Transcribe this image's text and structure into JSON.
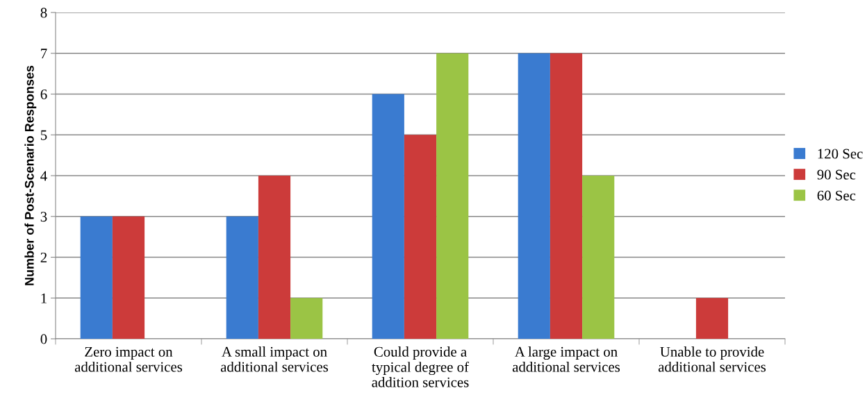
{
  "chart_data": {
    "type": "bar",
    "ylabel": "Number of Post-Scenario Responses",
    "categories": [
      "Zero impact on\nadditional services",
      "A small impact on\nadditional services",
      "Could provide a\ntypical degree of\naddition services",
      "A large impact on\nadditional services",
      "Unable to provide\nadditional services"
    ],
    "series": [
      {
        "name": "120 Sec",
        "color": "#3a7bd0",
        "values": [
          3,
          3,
          6,
          7,
          0
        ]
      },
      {
        "name": "90 Sec",
        "color": "#cc3b3a",
        "values": [
          3,
          4,
          5,
          7,
          1
        ]
      },
      {
        "name": "60 Sec",
        "color": "#9bc445",
        "values": [
          0,
          1,
          7,
          4,
          0
        ]
      }
    ],
    "ylim": [
      0,
      8
    ],
    "yticks": [
      0,
      1,
      2,
      3,
      4,
      5,
      6,
      7,
      8
    ],
    "grid": "y",
    "legend": "right"
  }
}
